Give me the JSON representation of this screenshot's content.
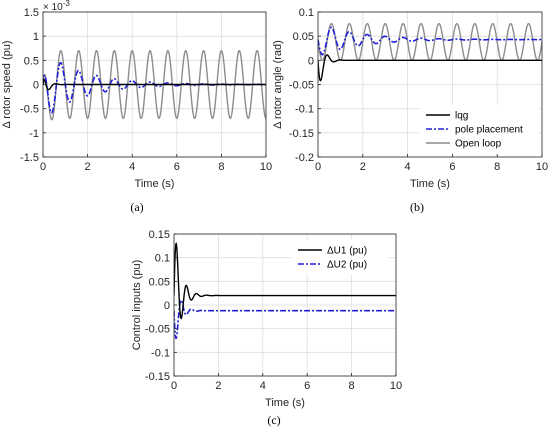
{
  "chart_data": [
    {
      "id": "a",
      "type": "line",
      "caption": "(a)",
      "xlabel": "Time (s)",
      "ylabel": "Δ rotor speed (pu)",
      "y_multiplier": "× 10",
      "y_exponent": "-3",
      "xlim": [
        0,
        10
      ],
      "ylim": [
        -1.5,
        1.5
      ],
      "xticks": [
        0,
        2,
        4,
        6,
        8,
        10
      ],
      "yticks": [
        -1.5,
        -1,
        -0.5,
        0,
        0.5,
        1,
        1.5
      ],
      "ytick_labels": [
        "-1.5",
        "-1",
        "-0.5",
        "0",
        "0.5",
        "1",
        "1.5"
      ],
      "grid": true,
      "series": [
        {
          "name": "lqg",
          "color": "#000000",
          "style": "solid",
          "model": {
            "offset": 0,
            "amp": 0.5,
            "freq": 1.7,
            "decay": 6.0,
            "phase": 1.4
          }
        },
        {
          "name": "pole placement",
          "color": "#1f1fd6",
          "style": "dashdot",
          "model": {
            "offset": 0,
            "amp": 0.7,
            "freq": 1.25,
            "decay": 0.55,
            "phase": 1.57
          }
        },
        {
          "name": "Open loop",
          "color": "#8c8c8c",
          "style": "solid",
          "model": {
            "offset": 0,
            "amp": 0.7,
            "freq": 1.25,
            "decay": 0.0,
            "phase": 1.57
          }
        }
      ]
    },
    {
      "id": "b",
      "type": "line",
      "caption": "(b)",
      "xlabel": "Time (s)",
      "ylabel": "Δ rotor angle (rad)",
      "xlim": [
        0,
        10
      ],
      "ylim": [
        -0.2,
        0.1
      ],
      "xticks": [
        0,
        2,
        4,
        6,
        8,
        10
      ],
      "yticks": [
        -0.2,
        -0.15,
        -0.1,
        -0.05,
        0,
        0.05,
        0.1
      ],
      "ytick_labels": [
        "-0.2",
        "-0.15",
        "-0.1",
        "-0.05",
        "0",
        "0.05",
        "0.1"
      ],
      "grid": true,
      "legend": {
        "placement": "bottom-right",
        "entries": [
          "lqg",
          "pole placement",
          "Open loop"
        ]
      },
      "series": [
        {
          "name": "lqg",
          "color": "#000000",
          "style": "solid",
          "model": {
            "offset": 0.0,
            "amp": -0.075,
            "freq": 1.7,
            "decay": 4.5,
            "phase": 0,
            "start": 0.0,
            "shape": "step"
          }
        },
        {
          "name": "pole placement",
          "color": "#1f1fd6",
          "style": "dashdot",
          "model": {
            "offset": 0.043,
            "amp": 0.035,
            "freq": 1.25,
            "decay": 0.55,
            "phase": 3.14
          }
        },
        {
          "name": "Open loop",
          "color": "#8c8c8c",
          "style": "solid",
          "model": {
            "offset": 0.038,
            "amp": 0.038,
            "freq": 1.25,
            "decay": 0.0,
            "phase": 3.14
          }
        }
      ]
    },
    {
      "id": "c",
      "type": "line",
      "caption": "(c)",
      "xlabel": "Time (s)",
      "ylabel": "Control inputs (pu)",
      "xlim": [
        0,
        10
      ],
      "ylim": [
        -0.15,
        0.15
      ],
      "xticks": [
        0,
        2,
        4,
        6,
        8,
        10
      ],
      "yticks": [
        -0.15,
        -0.1,
        -0.05,
        0,
        0.05,
        0.1,
        0.15
      ],
      "ytick_labels": [
        "-0.15",
        "-0.1",
        "-0.05",
        "0",
        "0.05",
        "0.1",
        "0.15"
      ],
      "grid": true,
      "legend": {
        "placement": "top-right",
        "entries": [
          "ΔU1 (pu)",
          "ΔU2 (pu)"
        ]
      },
      "series": [
        {
          "name": "ΔU1 (pu)",
          "color": "#000000",
          "style": "solid",
          "model": {
            "offset": 0.02,
            "amp": 0.16,
            "freq": 2.2,
            "decay": 3.6,
            "phase": 0
          }
        },
        {
          "name": "ΔU2 (pu)",
          "color": "#1f1fd6",
          "style": "dashdot",
          "model": {
            "offset": -0.012,
            "amp": -0.09,
            "freq": 2.2,
            "decay": 4.2,
            "phase": 0
          }
        }
      ]
    }
  ]
}
